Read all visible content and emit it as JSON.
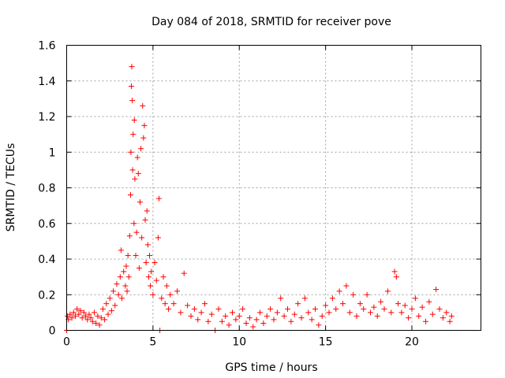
{
  "chart_data": {
    "type": "scatter",
    "title": "Day 084 of 2018, SRMTID for receiver pove",
    "xlabel": "GPS time / hours",
    "ylabel": "SRMTID / TECUs",
    "xlim": [
      0,
      24
    ],
    "ylim": [
      0,
      1.6
    ],
    "x_ticks": [
      0,
      5,
      10,
      15,
      20
    ],
    "x_tick_labels": [
      "0",
      "5",
      "10",
      "15",
      "20"
    ],
    "y_ticks": [
      0,
      0.2,
      0.4,
      0.6,
      0.8,
      1.0,
      1.2,
      1.4,
      1.6
    ],
    "y_tick_labels": [
      "0",
      "0.2",
      "0.4",
      "0.6",
      "0.8",
      "1",
      "1.2",
      "1.4",
      "1.6"
    ],
    "grid": true,
    "marker": "+",
    "series": [
      {
        "name": "SRMTID",
        "color": "#ff0000",
        "points": [
          [
            0.0,
            0.0
          ],
          [
            0.05,
            0.08
          ],
          [
            0.1,
            0.06
          ],
          [
            0.2,
            0.09
          ],
          [
            0.3,
            0.07
          ],
          [
            0.4,
            0.1
          ],
          [
            0.5,
            0.08
          ],
          [
            0.6,
            0.12
          ],
          [
            0.7,
            0.09
          ],
          [
            0.8,
            0.11
          ],
          [
            0.9,
            0.07
          ],
          [
            1.0,
            0.1
          ],
          [
            1.1,
            0.08
          ],
          [
            1.2,
            0.06
          ],
          [
            1.3,
            0.09
          ],
          [
            1.4,
            0.07
          ],
          [
            1.5,
            0.05
          ],
          [
            1.6,
            0.1
          ],
          [
            1.7,
            0.04
          ],
          [
            1.8,
            0.08
          ],
          [
            1.9,
            0.03
          ],
          [
            2.0,
            0.07
          ],
          [
            2.1,
            0.12
          ],
          [
            2.2,
            0.06
          ],
          [
            2.3,
            0.15
          ],
          [
            2.4,
            0.09
          ],
          [
            2.5,
            0.18
          ],
          [
            2.6,
            0.11
          ],
          [
            2.7,
            0.22
          ],
          [
            2.8,
            0.14
          ],
          [
            2.9,
            0.26
          ],
          [
            3.0,
            0.2
          ],
          [
            3.1,
            0.3
          ],
          [
            3.15,
            0.45
          ],
          [
            3.2,
            0.18
          ],
          [
            3.3,
            0.33
          ],
          [
            3.4,
            0.25
          ],
          [
            3.45,
            0.36
          ],
          [
            3.5,
            0.22
          ],
          [
            3.55,
            0.42
          ],
          [
            3.6,
            0.3
          ],
          [
            3.65,
            0.53
          ],
          [
            3.7,
            0.76
          ],
          [
            3.72,
            1.0
          ],
          [
            3.75,
            1.37
          ],
          [
            3.77,
            1.48
          ],
          [
            3.8,
            1.29
          ],
          [
            3.82,
            0.9
          ],
          [
            3.85,
            1.1
          ],
          [
            3.9,
            0.6
          ],
          [
            3.92,
            1.18
          ],
          [
            3.95,
            0.85
          ],
          [
            4.0,
            0.42
          ],
          [
            4.05,
            0.55
          ],
          [
            4.1,
            0.97
          ],
          [
            4.15,
            0.88
          ],
          [
            4.2,
            0.35
          ],
          [
            4.25,
            0.72
          ],
          [
            4.3,
            1.02
          ],
          [
            4.35,
            0.52
          ],
          [
            4.4,
            1.26
          ],
          [
            4.45,
            1.08
          ],
          [
            4.5,
            1.15
          ],
          [
            4.55,
            0.62
          ],
          [
            4.6,
            0.38
          ],
          [
            4.65,
            0.67
          ],
          [
            4.7,
            0.48
          ],
          [
            4.75,
            0.3
          ],
          [
            4.8,
            0.42
          ],
          [
            4.85,
            0.25
          ],
          [
            4.9,
            0.33
          ],
          [
            5.0,
            0.2
          ],
          [
            5.1,
            0.38
          ],
          [
            5.2,
            0.28
          ],
          [
            5.3,
            0.52
          ],
          [
            5.35,
            0.74
          ],
          [
            5.4,
            0.0
          ],
          [
            5.5,
            0.18
          ],
          [
            5.6,
            0.3
          ],
          [
            5.7,
            0.15
          ],
          [
            5.8,
            0.25
          ],
          [
            5.9,
            0.12
          ],
          [
            6.0,
            0.2
          ],
          [
            6.2,
            0.15
          ],
          [
            6.4,
            0.22
          ],
          [
            6.6,
            0.1
          ],
          [
            6.8,
            0.32
          ],
          [
            7.0,
            0.14
          ],
          [
            7.2,
            0.08
          ],
          [
            7.4,
            0.12
          ],
          [
            7.6,
            0.06
          ],
          [
            7.8,
            0.1
          ],
          [
            8.0,
            0.15
          ],
          [
            8.2,
            0.05
          ],
          [
            8.4,
            0.09
          ],
          [
            8.6,
            0.0
          ],
          [
            8.8,
            0.12
          ],
          [
            9.0,
            0.05
          ],
          [
            9.2,
            0.08
          ],
          [
            9.4,
            0.03
          ],
          [
            9.6,
            0.1
          ],
          [
            9.8,
            0.06
          ],
          [
            10.0,
            0.08
          ],
          [
            10.2,
            0.12
          ],
          [
            10.4,
            0.04
          ],
          [
            10.6,
            0.07
          ],
          [
            10.8,
            0.02
          ],
          [
            11.0,
            0.06
          ],
          [
            11.2,
            0.1
          ],
          [
            11.4,
            0.04
          ],
          [
            11.6,
            0.08
          ],
          [
            11.8,
            0.12
          ],
          [
            12.0,
            0.06
          ],
          [
            12.2,
            0.1
          ],
          [
            12.4,
            0.18
          ],
          [
            12.6,
            0.08
          ],
          [
            12.8,
            0.12
          ],
          [
            13.0,
            0.05
          ],
          [
            13.2,
            0.09
          ],
          [
            13.4,
            0.15
          ],
          [
            13.6,
            0.07
          ],
          [
            13.8,
            0.18
          ],
          [
            14.0,
            0.1
          ],
          [
            14.2,
            0.06
          ],
          [
            14.4,
            0.12
          ],
          [
            14.6,
            0.03
          ],
          [
            14.8,
            0.08
          ],
          [
            15.0,
            0.14
          ],
          [
            15.2,
            0.1
          ],
          [
            15.4,
            0.18
          ],
          [
            15.6,
            0.12
          ],
          [
            15.8,
            0.22
          ],
          [
            16.0,
            0.15
          ],
          [
            16.2,
            0.25
          ],
          [
            16.4,
            0.1
          ],
          [
            16.6,
            0.2
          ],
          [
            16.8,
            0.08
          ],
          [
            17.0,
            0.15
          ],
          [
            17.2,
            0.12
          ],
          [
            17.4,
            0.2
          ],
          [
            17.6,
            0.1
          ],
          [
            17.8,
            0.13
          ],
          [
            18.0,
            0.08
          ],
          [
            18.2,
            0.16
          ],
          [
            18.4,
            0.12
          ],
          [
            18.6,
            0.22
          ],
          [
            18.8,
            0.1
          ],
          [
            19.0,
            0.33
          ],
          [
            19.1,
            0.3
          ],
          [
            19.2,
            0.15
          ],
          [
            19.4,
            0.1
          ],
          [
            19.6,
            0.14
          ],
          [
            19.8,
            0.07
          ],
          [
            20.0,
            0.12
          ],
          [
            20.2,
            0.18
          ],
          [
            20.4,
            0.08
          ],
          [
            20.6,
            0.13
          ],
          [
            20.8,
            0.05
          ],
          [
            21.0,
            0.16
          ],
          [
            21.2,
            0.09
          ],
          [
            21.4,
            0.23
          ],
          [
            21.6,
            0.12
          ],
          [
            21.8,
            0.07
          ],
          [
            22.0,
            0.1
          ],
          [
            22.2,
            0.05
          ],
          [
            22.3,
            0.08
          ]
        ]
      }
    ]
  }
}
